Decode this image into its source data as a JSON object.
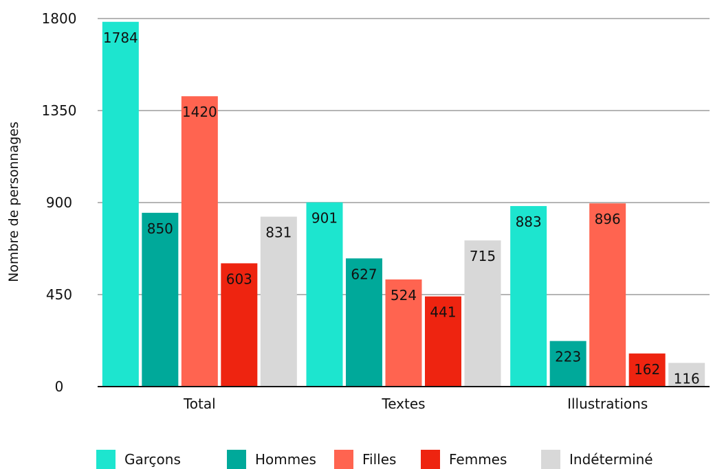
{
  "chart_data": {
    "type": "bar",
    "title": "",
    "xlabel": "",
    "ylabel": "Nombre de personnages",
    "ylim": [
      0,
      1800
    ],
    "yticks": [
      0,
      450,
      900,
      1350,
      1800
    ],
    "grid": true,
    "legend_position": "bottom",
    "categories": [
      "Total",
      "Textes",
      "Illustrations"
    ],
    "series": [
      {
        "name": "Garçons",
        "color": "#1de5cf",
        "values": [
          1784,
          901,
          883
        ]
      },
      {
        "name": "Hommes",
        "color": "#00a99a",
        "values": [
          850,
          627,
          223
        ]
      },
      {
        "name": "Filles",
        "color": "#ff6450",
        "values": [
          1420,
          524,
          896
        ]
      },
      {
        "name": "Femmes",
        "color": "#ee2410",
        "values": [
          603,
          441,
          162
        ]
      },
      {
        "name": "Indéterminé",
        "color": "#d8d8d8",
        "values": [
          831,
          715,
          116
        ]
      }
    ]
  }
}
